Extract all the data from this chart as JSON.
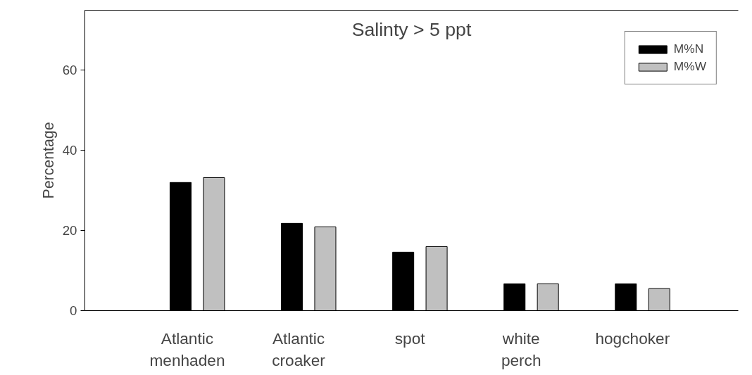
{
  "chart_data": {
    "type": "bar",
    "title": "Salinty > 5 ppt",
    "ylabel": "Percentage",
    "categories": [
      "Atlantic menhaden",
      "Atlantic croaker",
      "spot",
      "white perch",
      "hogchoker"
    ],
    "series": [
      {
        "name": "M%N",
        "color": "#000000",
        "values": [
          32.0,
          21.8,
          14.6,
          6.7,
          6.7
        ]
      },
      {
        "name": "M%W",
        "color": "#c0c0c0",
        "values": [
          33.2,
          20.9,
          16.0,
          6.7,
          5.5
        ]
      }
    ],
    "ylim": [
      0,
      75
    ],
    "yticks": [
      0,
      20,
      40,
      60
    ],
    "grid": false,
    "legend": "top right"
  }
}
